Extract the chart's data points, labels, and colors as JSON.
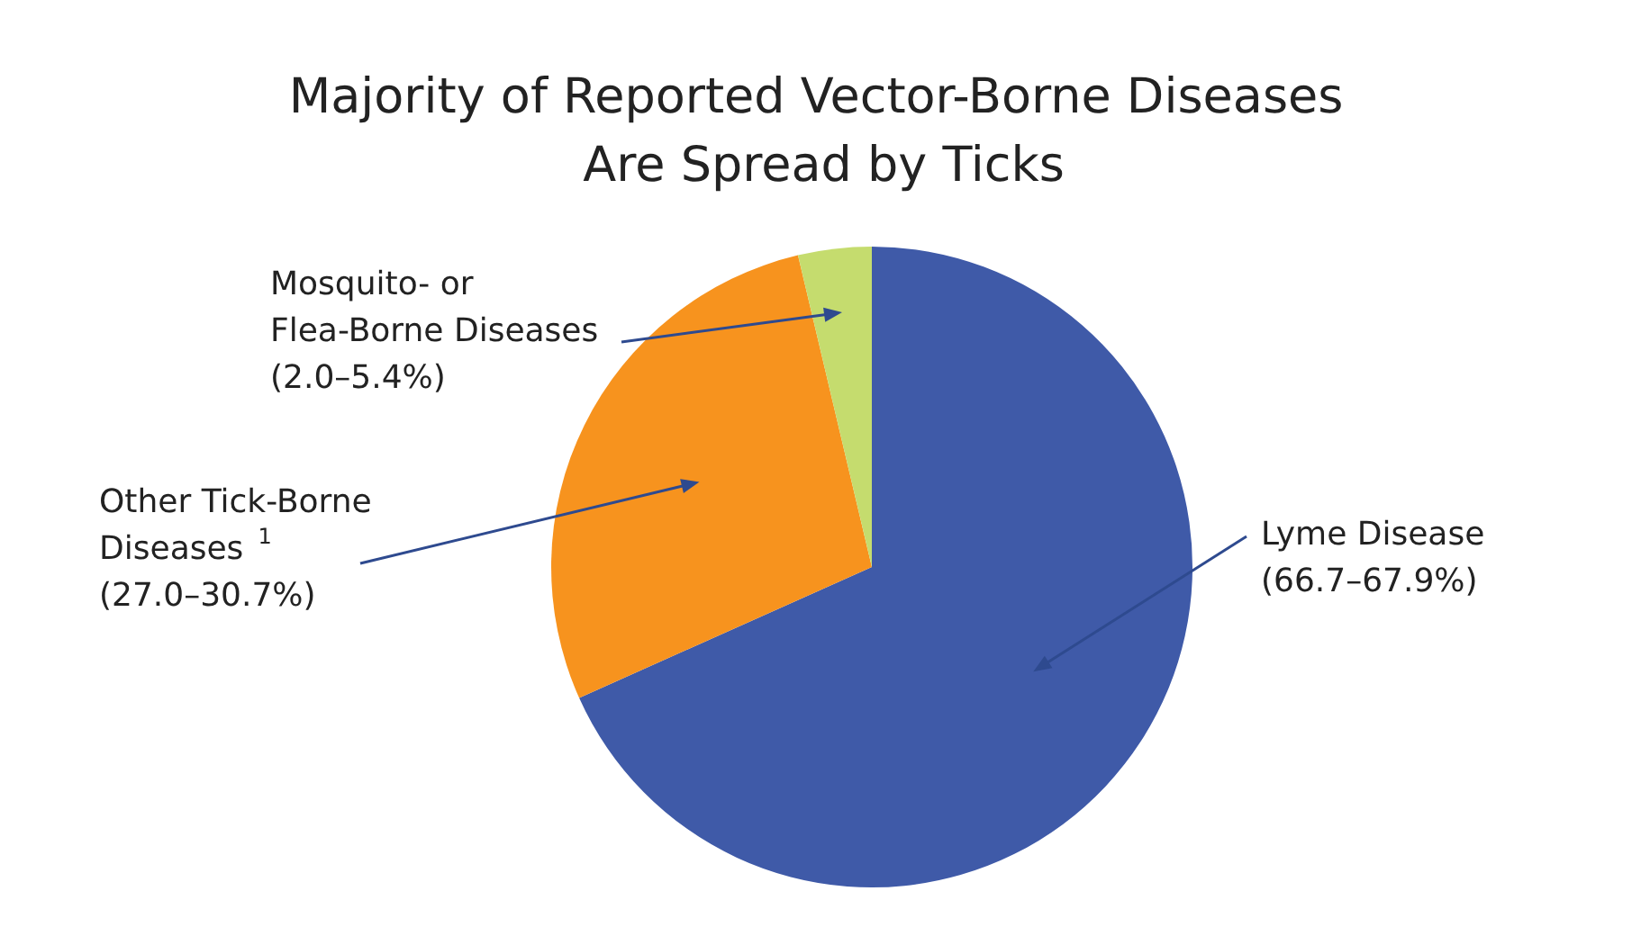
{
  "chart_data": {
    "type": "pie",
    "title": "Majority of Reported Vector-Borne Diseases Are Spread by Ticks",
    "categories": [
      "Lyme Disease (66.7–67.9%)",
      "Other Tick-Borne Diseases$^{1}$ (27.0–30.7%)",
      "Mosquito- or Flea-Borne Diseases (2.0–5.4%)"
    ],
    "values": [
      68.3,
      28.0,
      3.7
    ],
    "colors": [
      "#3f5aa8",
      "#f7931e",
      "#c5dc6e"
    ],
    "legend": false
  }
}
